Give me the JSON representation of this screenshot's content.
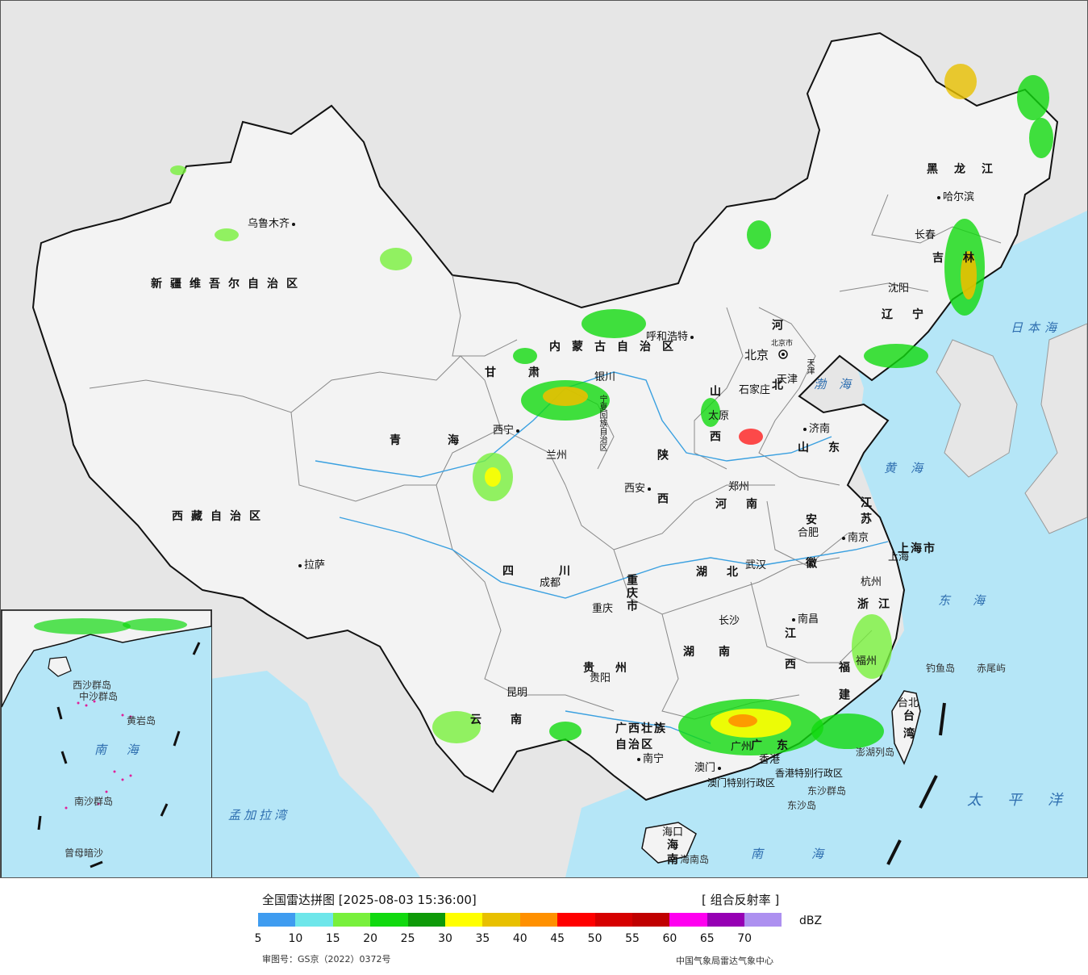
{
  "colors": {
    "land": "#f3f3f3",
    "neighbor_land": "#e6e6e6",
    "sea": "#b5e6f7",
    "border": "#111111",
    "province_border": "#888888",
    "river": "#3aa0e0"
  },
  "cities": [
    {
      "id": "urumqi",
      "name": "乌鲁木齐"
    },
    {
      "id": "lhasa",
      "name": "拉萨"
    },
    {
      "id": "xining",
      "name": "西宁"
    },
    {
      "id": "lanzhou",
      "name": "兰州"
    },
    {
      "id": "yinchuan",
      "name": "银川"
    },
    {
      "id": "hohhot",
      "name": "呼和浩特"
    },
    {
      "id": "beijing",
      "name": "北京"
    },
    {
      "id": "tianjin",
      "name": "天津"
    },
    {
      "id": "shijiazhuang",
      "name": "石家庄"
    },
    {
      "id": "taiyuan",
      "name": "太原"
    },
    {
      "id": "jinan",
      "name": "济南"
    },
    {
      "id": "zhengzhou",
      "name": "郑州"
    },
    {
      "id": "xian",
      "name": "西安"
    },
    {
      "id": "chengdu",
      "name": "成都"
    },
    {
      "id": "chongqing",
      "name": "重庆"
    },
    {
      "id": "wuhan",
      "name": "武汉"
    },
    {
      "id": "hefei",
      "name": "合肥"
    },
    {
      "id": "nanjing",
      "name": "南京"
    },
    {
      "id": "shanghai",
      "name": "上海"
    },
    {
      "id": "hangzhou",
      "name": "杭州"
    },
    {
      "id": "nanchang",
      "name": "南昌"
    },
    {
      "id": "changsha",
      "name": "长沙"
    },
    {
      "id": "guiyang",
      "name": "贵阳"
    },
    {
      "id": "kunming",
      "name": "昆明"
    },
    {
      "id": "nanning",
      "name": "南宁"
    },
    {
      "id": "guangzhou",
      "name": "广州"
    },
    {
      "id": "fuzhou",
      "name": "福州"
    },
    {
      "id": "taipei",
      "name": "台北"
    },
    {
      "id": "haikou",
      "name": "海口"
    },
    {
      "id": "aomen",
      "name": "澳门"
    },
    {
      "id": "xianggang",
      "name": "香港"
    },
    {
      "id": "shenyang",
      "name": "沈阳"
    },
    {
      "id": "changchun",
      "name": "长春"
    },
    {
      "id": "harbin",
      "name": "哈尔滨"
    }
  ],
  "provinces": [
    {
      "id": "xinjiang",
      "name": "新疆维吾尔自治区"
    },
    {
      "id": "xizang",
      "name": "西藏自治区"
    },
    {
      "id": "qinghai",
      "name": "青海"
    },
    {
      "id": "gansu",
      "name": "甘肃"
    },
    {
      "id": "neimenggu",
      "name": "内蒙古自治区"
    },
    {
      "id": "heilongjiang",
      "name": "黑龙江"
    },
    {
      "id": "jilin",
      "name": "吉林"
    },
    {
      "id": "liaoning",
      "name": "辽宁"
    },
    {
      "id": "hebei",
      "name": "河北"
    },
    {
      "id": "shanxi",
      "name": "山西"
    },
    {
      "id": "shandong",
      "name": "山东"
    },
    {
      "id": "henan",
      "name": "河南"
    },
    {
      "id": "shaanxi",
      "name": "陕西"
    },
    {
      "id": "sichuan",
      "name": "四川"
    },
    {
      "id": "chongqing_shi",
      "name": "重庆市"
    },
    {
      "id": "hubei",
      "name": "湖北"
    },
    {
      "id": "hunan",
      "name": "湖南"
    },
    {
      "id": "anhui",
      "name": "安徽"
    },
    {
      "id": "jiangsu",
      "name": "江苏"
    },
    {
      "id": "shanghai_shi",
      "name": "上海市"
    },
    {
      "id": "zhejiang",
      "name": "浙江"
    },
    {
      "id": "jiangxi",
      "name": "江西"
    },
    {
      "id": "fujian",
      "name": "福建"
    },
    {
      "id": "guizhou",
      "name": "贵州"
    },
    {
      "id": "yunnan",
      "name": "云南"
    },
    {
      "id": "guangxi",
      "name": "广西壮族自治区"
    },
    {
      "id": "guangdong",
      "name": "广东"
    },
    {
      "id": "hainan",
      "name": "海南"
    },
    {
      "id": "taiwan",
      "name": "台湾"
    },
    {
      "id": "ningxia",
      "name": "宁夏回族自治区"
    },
    {
      "id": "beijing_shi",
      "name": "北京市"
    },
    {
      "id": "tianjin_shi",
      "name": "天津"
    },
    {
      "id": "hk_sar",
      "name": "香港特别行政区"
    },
    {
      "id": "macau_sar",
      "name": "澳门特别行政区"
    }
  ],
  "seas": [
    {
      "id": "bohai",
      "name": "渤海"
    },
    {
      "id": "huanghai",
      "name": "黄海"
    },
    {
      "id": "donghai",
      "name": "东海"
    },
    {
      "id": "nanhai",
      "name": "南海"
    },
    {
      "id": "riben_hai",
      "name": "日本海"
    },
    {
      "id": "taipingyang",
      "name": "太平洋"
    },
    {
      "id": "mengjiala",
      "name": "孟加拉湾"
    }
  ],
  "islands": [
    {
      "id": "diaoyu",
      "name": "钓鱼岛"
    },
    {
      "id": "chiwei",
      "name": "赤尾屿"
    },
    {
      "id": "dongsha",
      "name": "东沙岛"
    },
    {
      "id": "dongsha_qundao",
      "name": "东沙群岛"
    },
    {
      "id": "hainandao",
      "name": "海南岛"
    },
    {
      "id": "penghu",
      "name": "澎湖列岛"
    }
  ],
  "inset": {
    "labels": [
      {
        "id": "inset-nanhai",
        "name": "南 海"
      },
      {
        "id": "inset-xisha",
        "name": "西沙群岛"
      },
      {
        "id": "inset-zhongsha",
        "name": "中沙群岛"
      },
      {
        "id": "inset-nansha",
        "name": "南沙群岛"
      },
      {
        "id": "inset-huangyan",
        "name": "黄岩岛"
      },
      {
        "id": "inset-zengmu",
        "name": "曾母暗沙"
      }
    ]
  },
  "legend": {
    "title": "全国雷达拼图 [2025-08-03 15:36:00]",
    "product": "[ 组合反射率 ]",
    "unit": "dBZ",
    "approval": "审图号：GS京（2022）0372号",
    "source": "中国气象局雷达气象中心",
    "colors": [
      "#3f9cf0",
      "#6ee6ea",
      "#78f03c",
      "#11d90f",
      "#0e9a08",
      "#ffff00",
      "#e8c000",
      "#ff9000",
      "#ff0000",
      "#d60000",
      "#c00000",
      "#ff00f0",
      "#9600b4",
      "#ad90f0"
    ],
    "ticks": [
      "5",
      "10",
      "15",
      "20",
      "25",
      "30",
      "35",
      "40",
      "45",
      "50",
      "55",
      "60",
      "65",
      "70"
    ]
  }
}
